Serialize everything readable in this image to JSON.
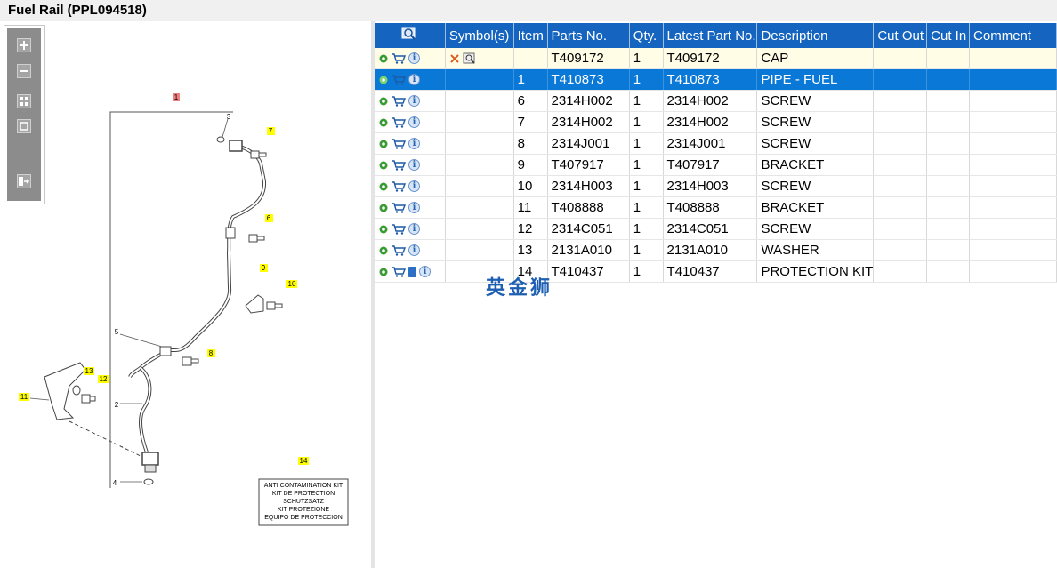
{
  "window": {
    "title": "Fuel Rail (PPL094518)"
  },
  "toolbox": {
    "zoom_in": "zoom-in-icon",
    "zoom_out": "zoom-out-icon",
    "fit_all": "fit-all-icon",
    "fit_window": "fit-window-icon",
    "export": "export-icon"
  },
  "diagram": {
    "callouts": [
      "1",
      "2",
      "3",
      "4",
      "5",
      "6",
      "7",
      "8",
      "9",
      "10",
      "11",
      "12",
      "13",
      "14"
    ],
    "kit_lines": [
      "ANTI CONTAMINATION KIT",
      "KIT DE PROTECTION",
      "SCHUTZSATZ",
      "KIT PROTEZIONE",
      "EQUIPO DE PROTECCION"
    ]
  },
  "table": {
    "columns": [
      "Symbol(s)",
      "Item",
      "Parts No.",
      "Qty.",
      "Latest Part No.",
      "Description",
      "Cut Out",
      "Cut In",
      "Comment"
    ],
    "rows": [
      {
        "item": "",
        "parts_no": "T409172",
        "qty": "1",
        "latest": "T409172",
        "description": "CAP",
        "cut_out": "",
        "cut_in": "",
        "comment": ""
      },
      {
        "item": "1",
        "parts_no": "T410873",
        "qty": "1",
        "latest": "T410873",
        "description": "PIPE - FUEL",
        "cut_out": "",
        "cut_in": "",
        "comment": ""
      },
      {
        "item": "6",
        "parts_no": "2314H002",
        "qty": "1",
        "latest": "2314H002",
        "description": "SCREW",
        "cut_out": "",
        "cut_in": "",
        "comment": ""
      },
      {
        "item": "7",
        "parts_no": "2314H002",
        "qty": "1",
        "latest": "2314H002",
        "description": "SCREW",
        "cut_out": "",
        "cut_in": "",
        "comment": ""
      },
      {
        "item": "8",
        "parts_no": "2314J001",
        "qty": "1",
        "latest": "2314J001",
        "description": "SCREW",
        "cut_out": "",
        "cut_in": "",
        "comment": ""
      },
      {
        "item": "9",
        "parts_no": "T407917",
        "qty": "1",
        "latest": "T407917",
        "description": "BRACKET",
        "cut_out": "",
        "cut_in": "",
        "comment": ""
      },
      {
        "item": "10",
        "parts_no": "2314H003",
        "qty": "1",
        "latest": "2314H003",
        "description": "SCREW",
        "cut_out": "",
        "cut_in": "",
        "comment": ""
      },
      {
        "item": "11",
        "parts_no": "T408888",
        "qty": "1",
        "latest": "T408888",
        "description": "BRACKET",
        "cut_out": "",
        "cut_in": "",
        "comment": ""
      },
      {
        "item": "12",
        "parts_no": "2314C051",
        "qty": "1",
        "latest": "2314C051",
        "description": "SCREW",
        "cut_out": "",
        "cut_in": "",
        "comment": ""
      },
      {
        "item": "13",
        "parts_no": "2131A010",
        "qty": "1",
        "latest": "2131A010",
        "description": "WASHER",
        "cut_out": "",
        "cut_in": "",
        "comment": ""
      },
      {
        "item": "14",
        "parts_no": "T410437",
        "qty": "1",
        "latest": "T410437",
        "description": "PROTECTION KIT",
        "cut_out": "",
        "cut_in": "",
        "comment": ""
      }
    ]
  },
  "watermark": "英金狮",
  "colors": {
    "header_bg": "#1565c0",
    "selected_row": "#0a78d7",
    "highlight_row": "#fffde6",
    "callout_yellow": "#ffff00",
    "callout_red": "#f08080"
  }
}
